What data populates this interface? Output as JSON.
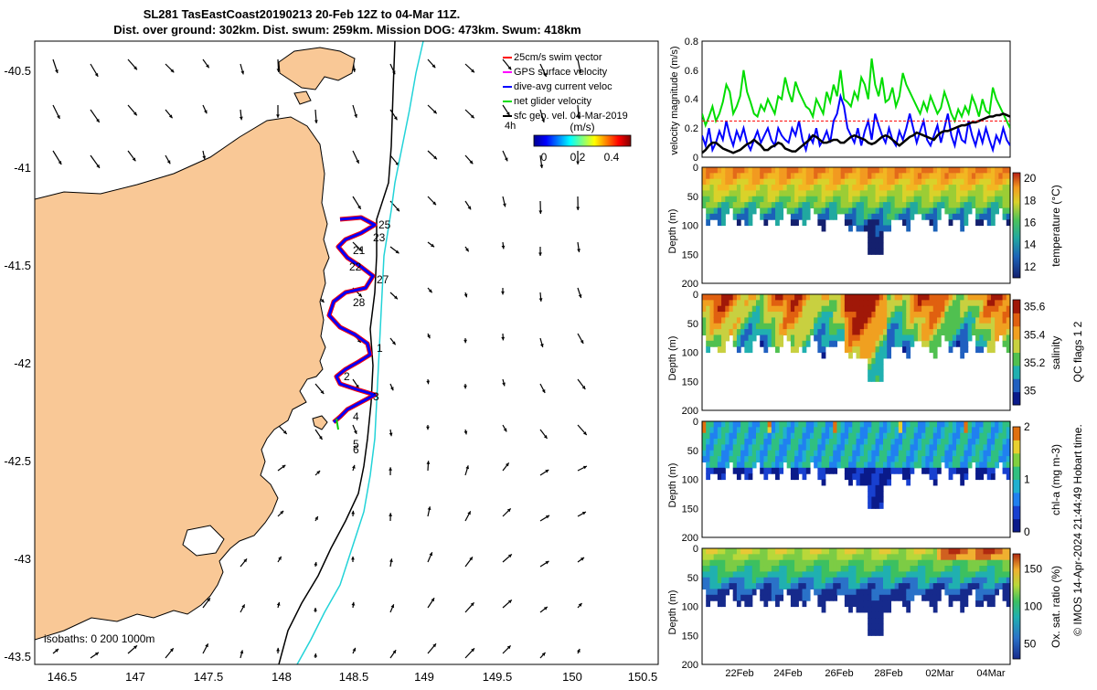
{
  "title": {
    "line1": "SL281 TasEastCoast20190213 20-Feb 12Z to 04-Mar 11Z.",
    "line2": "Dist. over ground: 302km. Dist. swum: 259km. Mission DOG: 473km. Swum: 418km"
  },
  "map": {
    "x_ticks": [
      "146.5",
      "147",
      "147.5",
      "148",
      "148.5",
      "149",
      "149.5",
      "150",
      "150.5"
    ],
    "y_ticks": [
      "-40.5",
      "-41",
      "-41.5",
      "-42",
      "-42.5",
      "-43",
      "-43.5"
    ],
    "legend": [
      {
        "label": "25cm/s swim vector",
        "color": "#ff0000"
      },
      {
        "label": "GPS surface velocity",
        "color": "#ff00ff"
      },
      {
        "label": "dive-avg current veloc",
        "color": "#0000ff"
      },
      {
        "label": "net glider velocity",
        "color": "#00dd00"
      },
      {
        "label": "sfc geo. vel. 04-Mar-2019",
        "color": "#000000"
      }
    ],
    "legend_extra": "4h",
    "colorbar_label": "(m/s)",
    "colorbar_ticks": [
      "0",
      "0.2",
      "0.4"
    ],
    "isobath_text": "isobaths: 0   200 1000m",
    "day_labels": [
      "25",
      "23",
      "21",
      "22",
      "27",
      "28",
      "1",
      "2",
      "3",
      "4",
      "5",
      "6"
    ],
    "colors": {
      "land": "#f9c896",
      "iso200": "#000000",
      "iso1000": "#22d3d8",
      "track_red": "#ff0000",
      "track_blue": "#0000ff"
    }
  },
  "chart_data": [
    {
      "type": "line",
      "title": "",
      "ylabel": "velocity magnitude (m/s)",
      "ylim": [
        0,
        0.8
      ],
      "y_ticks": [
        "0",
        "0.2",
        "0.4",
        "0.6",
        "0.8"
      ],
      "x_range_days": [
        0,
        13
      ],
      "series": [
        {
          "name": "net glider velocity",
          "color": "#00dd00",
          "values": [
            0.3,
            0.22,
            0.28,
            0.35,
            0.25,
            0.3,
            0.38,
            0.5,
            0.45,
            0.3,
            0.35,
            0.42,
            0.6,
            0.45,
            0.38,
            0.3,
            0.28,
            0.36,
            0.32,
            0.4,
            0.35,
            0.3,
            0.42,
            0.4,
            0.55,
            0.45,
            0.38,
            0.52,
            0.45,
            0.4,
            0.35,
            0.33,
            0.28,
            0.4,
            0.35,
            0.3,
            0.45,
            0.38,
            0.5,
            0.42,
            0.6,
            0.4,
            0.38,
            0.35,
            0.45,
            0.4,
            0.55,
            0.5,
            0.4,
            0.68,
            0.5,
            0.42,
            0.55,
            0.38,
            0.4,
            0.48,
            0.35,
            0.42,
            0.58,
            0.5,
            0.45,
            0.4,
            0.35,
            0.3,
            0.38,
            0.32,
            0.42,
            0.36,
            0.3,
            0.34,
            0.45,
            0.38,
            0.3,
            0.25,
            0.33,
            0.28,
            0.35,
            0.3,
            0.42,
            0.36,
            0.28,
            0.4,
            0.32,
            0.3,
            0.48,
            0.4,
            0.35,
            0.3,
            0.25,
            0.2
          ]
        },
        {
          "name": "dive-avg current veloc",
          "color": "#0000ff",
          "values": [
            0.15,
            0.08,
            0.2,
            0.05,
            0.1,
            0.18,
            0.12,
            0.25,
            0.15,
            0.08,
            0.18,
            0.12,
            0.2,
            0.1,
            0.05,
            0.12,
            0.18,
            0.1,
            0.15,
            0.2,
            0.12,
            0.08,
            0.2,
            0.15,
            0.12,
            0.1,
            0.2,
            0.15,
            0.25,
            0.12,
            0.05,
            0.15,
            0.1,
            0.2,
            0.08,
            0.12,
            0.18,
            0.1,
            0.25,
            0.3,
            0.42,
            0.35,
            0.2,
            0.15,
            0.1,
            0.2,
            0.08,
            0.18,
            0.25,
            0.12,
            0.3,
            0.22,
            0.15,
            0.1,
            0.2,
            0.12,
            0.08,
            0.18,
            0.12,
            0.2,
            0.3,
            0.2,
            0.1,
            0.18,
            0.25,
            0.12,
            0.08,
            0.15,
            0.22,
            0.1,
            0.2,
            0.3,
            0.15,
            0.08,
            0.2,
            0.12,
            0.1,
            0.25,
            0.15,
            0.08,
            0.18,
            0.1,
            0.2,
            0.12,
            0.05,
            0.15,
            0.1,
            0.2,
            0.12,
            0.08
          ]
        },
        {
          "name": "sfc geo. vel.",
          "color": "#000000",
          "values": [
            0.03,
            0.05,
            0.08,
            0.1,
            0.1,
            0.08,
            0.06,
            0.05,
            0.04,
            0.03,
            0.04,
            0.05,
            0.07,
            0.09,
            0.1,
            0.12,
            0.1,
            0.08,
            0.05,
            0.05,
            0.07,
            0.08,
            0.1,
            0.09,
            0.06,
            0.05,
            0.04,
            0.04,
            0.06,
            0.08,
            0.1,
            0.12,
            0.15,
            0.14,
            0.12,
            0.1,
            0.1,
            0.11,
            0.12,
            0.12,
            0.1,
            0.1,
            0.12,
            0.14,
            0.15,
            0.14,
            0.13,
            0.12,
            0.1,
            0.09,
            0.1,
            0.12,
            0.14,
            0.15,
            0.14,
            0.12,
            0.1,
            0.08,
            0.1,
            0.12,
            0.14,
            0.15,
            0.17,
            0.16,
            0.15,
            0.14,
            0.13,
            0.12,
            0.15,
            0.17,
            0.18,
            0.18,
            0.19,
            0.2,
            0.21,
            0.22,
            0.22,
            0.23,
            0.24,
            0.24,
            0.25,
            0.26,
            0.27,
            0.28,
            0.28,
            0.29,
            0.29,
            0.3,
            0.29,
            0.28
          ]
        },
        {
          "name": "25cm/s swim",
          "color": "#ff0000",
          "values": [
            0.25,
            0.25
          ]
        }
      ]
    },
    {
      "type": "heatmap",
      "variable": "temperature",
      "cbar_label": "temperature (°C)",
      "clim": [
        11,
        20.5
      ],
      "cbar_ticks": [
        "12",
        "14",
        "16",
        "18",
        "20"
      ],
      "ylabel": "Depth (m)",
      "ylim": [
        200,
        0
      ],
      "y_ticks": [
        "0",
        "50",
        "100",
        "150",
        "200"
      ]
    },
    {
      "type": "heatmap",
      "variable": "salinity",
      "cbar_label": "salinity",
      "clim": [
        34.9,
        35.65
      ],
      "cbar_ticks": [
        "35",
        "35.2",
        "35.4",
        "35.6"
      ],
      "ylabel": "Depth (m)",
      "ylim": [
        200,
        0
      ],
      "y_ticks": [
        "0",
        "50",
        "100",
        "150",
        "200"
      ]
    },
    {
      "type": "heatmap",
      "variable": "chl",
      "cbar_label": "chl-a (mg m-3)",
      "clim": [
        0,
        2
      ],
      "cbar_ticks": [
        "0",
        "1",
        "2"
      ],
      "ylabel": "Depth (m)",
      "ylim": [
        200,
        0
      ],
      "y_ticks": [
        "0",
        "50",
        "100",
        "150",
        "200"
      ]
    },
    {
      "type": "heatmap",
      "variable": "oxygen",
      "cbar_label": "Ox. sat. ratio (%)",
      "clim": [
        30,
        170
      ],
      "cbar_ticks": [
        "50",
        "100",
        "150"
      ],
      "ylabel": "Depth (m)",
      "ylim": [
        200,
        0
      ],
      "y_ticks": [
        "0",
        "50",
        "100",
        "150",
        "200"
      ],
      "x_ticks": [
        "22Feb",
        "24Feb",
        "26Feb",
        "28Feb",
        "02Mar",
        "04Mar"
      ]
    }
  ],
  "side_note": {
    "flags": "QC flags 1  2",
    "credit": "© IMOS 14-Apr-2024 21:44:49 Hobart time."
  }
}
